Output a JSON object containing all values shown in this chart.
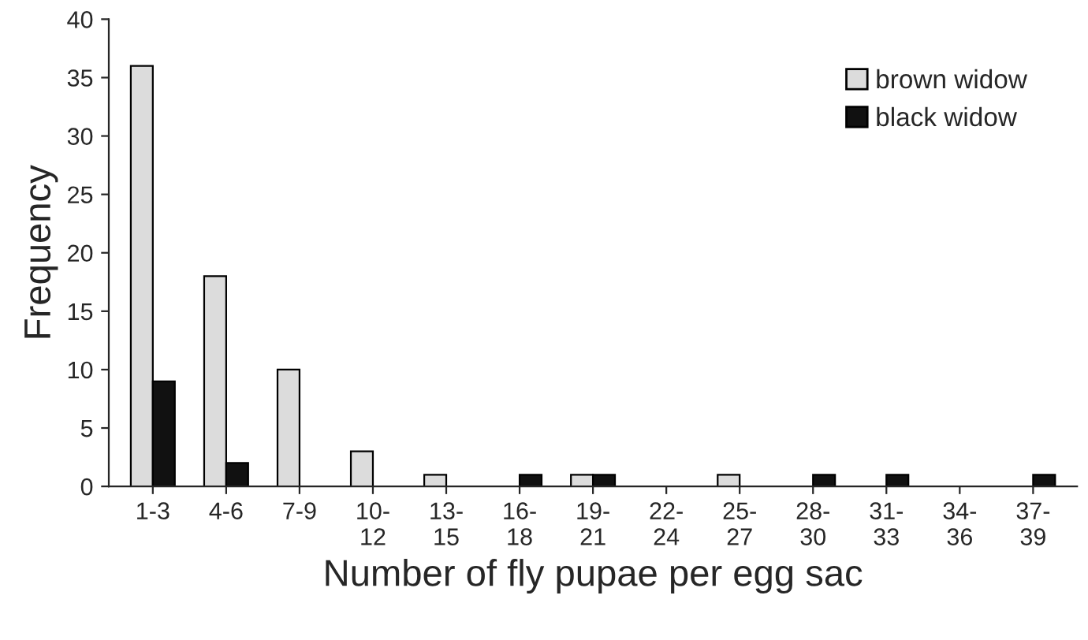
{
  "chart_data": {
    "type": "bar",
    "xlabel": "Number of fly pupae per egg sac",
    "ylabel": "Frequency",
    "categories": [
      "1-3",
      "4-6",
      "7-9",
      "10-12",
      "13-15",
      "16-18",
      "19-21",
      "22-24",
      "25-27",
      "28-30",
      "31-33",
      "34-36",
      "37-39"
    ],
    "series": [
      {
        "name": "brown widow",
        "color": "#dcdcdc",
        "values": [
          36,
          18,
          10,
          3,
          1,
          0,
          1,
          0,
          1,
          0,
          0,
          0,
          0
        ]
      },
      {
        "name": "black widow",
        "color": "#111111",
        "values": [
          9,
          2,
          0,
          0,
          0,
          1,
          1,
          0,
          0,
          1,
          1,
          0,
          1
        ]
      }
    ],
    "ylim": [
      0,
      40
    ],
    "yticks": [
      0,
      5,
      10,
      15,
      20,
      25,
      30,
      35,
      40
    ],
    "grid": false,
    "legend": "top right"
  }
}
